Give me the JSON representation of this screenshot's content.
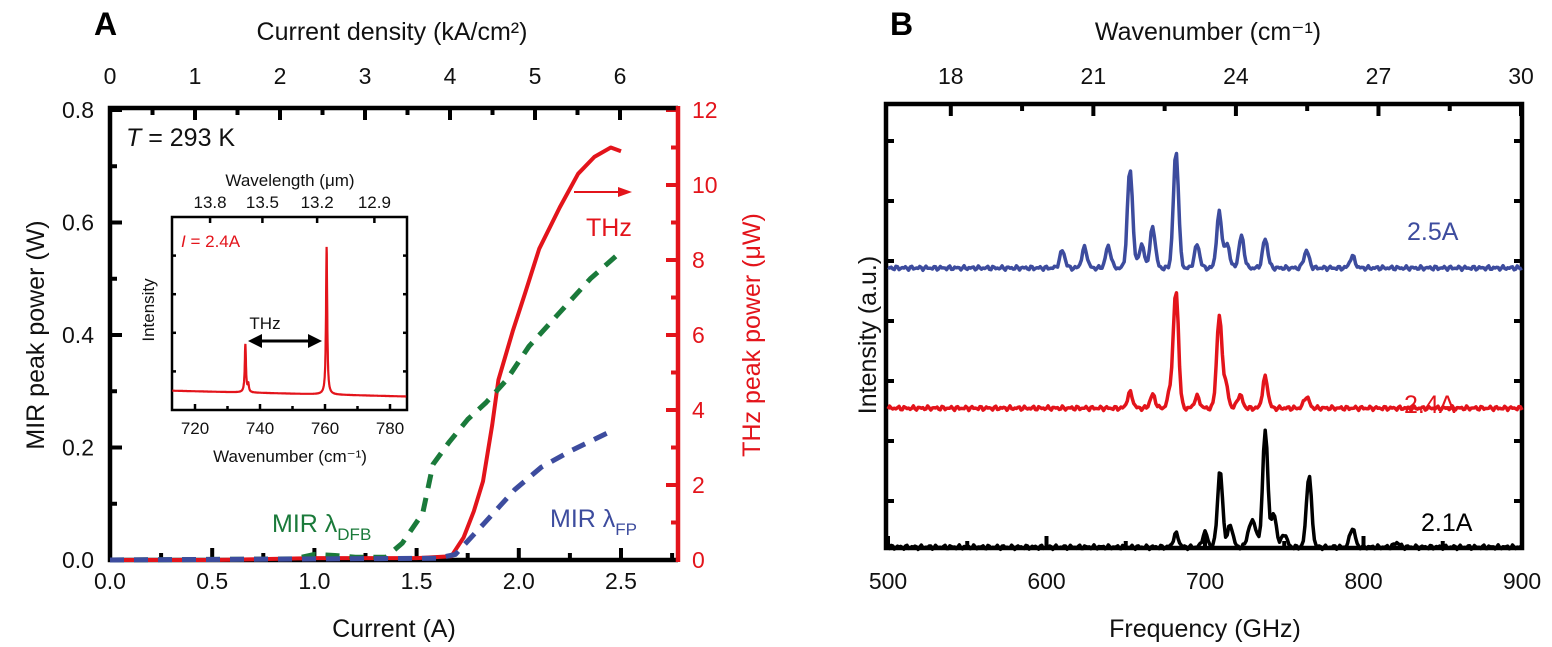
{
  "colors": {
    "thz": "#e3141b",
    "mir_dfb": "#1a7a3a",
    "mir_fp": "#3d4c9e",
    "axis": "#000000",
    "spec_25": "#3d4c9e",
    "spec_24": "#e3141b",
    "spec_21": "#000000"
  },
  "chart_data": [
    {
      "panel": "A",
      "type": "line",
      "xlabel": "Current (A)",
      "xlim": [
        0,
        2.78
      ],
      "xticks": [
        "0.0",
        "0.5",
        "1.0",
        "1.5",
        "2.0",
        "2.5"
      ],
      "x2label": "Current density (kA/cm²)",
      "x2ticks": [
        "0",
        "1",
        "2",
        "3",
        "4",
        "5",
        "6"
      ],
      "ylabel": "MIR peak power (W)",
      "ylim": [
        0,
        0.8
      ],
      "yticks": [
        "0.0",
        "0.2",
        "0.4",
        "0.6",
        "0.8"
      ],
      "y2label": "THz peak power (μW)",
      "y2lim": [
        0,
        12
      ],
      "y2ticks": [
        "0",
        "2",
        "4",
        "6",
        "8",
        "10",
        "12"
      ],
      "annotation_temp_italic": "T",
      "annotation_temp": " = 293 K",
      "thz_arrow_label": "THz",
      "series": [
        {
          "name": "THz",
          "axis": "right",
          "style": "solid",
          "x": [
            0,
            0.5,
            1.0,
            1.5,
            1.67,
            1.73,
            1.78,
            1.825,
            1.87,
            1.9,
            1.97,
            2.03,
            2.1,
            2.2,
            2.29,
            2.37,
            2.45,
            2.5
          ],
          "y": [
            0,
            0,
            0.05,
            0.05,
            0.1,
            0.6,
            1.3,
            2.1,
            3.6,
            4.8,
            6.1,
            7.1,
            8.3,
            9.4,
            10.3,
            10.75,
            11.0,
            10.9
          ]
        },
        {
          "name": "MIR λDFB",
          "label_main": "MIR λ",
          "label_sub": "DFB",
          "axis": "left",
          "style": "dashed",
          "x": [
            0,
            0.9,
            1.0,
            1.1,
            1.2,
            1.35,
            1.43,
            1.53,
            1.58,
            1.66,
            1.75,
            1.84,
            1.94,
            2.05,
            2.2,
            2.35,
            2.49
          ],
          "y": [
            0,
            0.002,
            0.01,
            0.008,
            0.005,
            0.005,
            0.03,
            0.083,
            0.17,
            0.21,
            0.25,
            0.28,
            0.32,
            0.38,
            0.44,
            0.5,
            0.545
          ]
        },
        {
          "name": "MIR λFP",
          "label_main": "MIR λ",
          "label_sub": "FP",
          "axis": "left",
          "style": "dashed",
          "x": [
            0,
            1.0,
            1.6,
            1.69,
            1.83,
            1.98,
            2.11,
            2.26,
            2.43
          ],
          "y": [
            0,
            0.002,
            0.003,
            0.01,
            0.065,
            0.125,
            0.165,
            0.195,
            0.225
          ]
        }
      ],
      "inset": {
        "type": "line",
        "xlabel": "Wavenumber (cm⁻¹)",
        "xlim": [
          713,
          785
        ],
        "xticks": [
          720,
          740,
          760,
          780
        ],
        "x2label": "Wavelength (μm)",
        "x2ticks": [
          "13.8",
          "13.5",
          "13.2",
          "12.9"
        ],
        "ylabel": "Intensity",
        "ylim": [
          0,
          1
        ],
        "current_italic": "I",
        "current_label": " = 2.4A",
        "arrow_label": "THz",
        "baseline": [
          0.1,
          0.07
        ],
        "peaks": [
          {
            "wavenumber": 735.5,
            "intensity": 0.34
          },
          {
            "wavenumber": 736.4,
            "intensity": 0.13
          },
          {
            "wavenumber": 760.5,
            "intensity": 0.845
          }
        ]
      }
    },
    {
      "panel": "B",
      "type": "line",
      "xlabel": "Frequency (GHz)",
      "xlim": [
        500,
        900
      ],
      "xticks": [
        "500",
        "600",
        "700",
        "800",
        "900"
      ],
      "x2label": "Wavenumber (cm⁻¹)",
      "x2ticks": [
        "18",
        "21",
        "24",
        "27",
        "30"
      ],
      "ylabel": "Intensity (a.u.)",
      "ylim": [
        0,
        7.6
      ],
      "series": [
        {
          "name": "2.5A",
          "baseline": 5.0,
          "peaks": [
            [
              610,
              5.3
            ],
            [
              624,
              5.35
            ],
            [
              639,
              5.37
            ],
            [
              652.7,
              6.7
            ],
            [
              660,
              5.4
            ],
            [
              667,
              5.7
            ],
            [
              681.7,
              7.0
            ],
            [
              695,
              5.4
            ],
            [
              709,
              5.95
            ],
            [
              714,
              5.4
            ],
            [
              723,
              5.55
            ],
            [
              738,
              5.5
            ],
            [
              764,
              5.3
            ],
            [
              793,
              5.2
            ]
          ]
        },
        {
          "name": "2.4A",
          "baseline": 2.6,
          "peaks": [
            [
              652.7,
              2.87
            ],
            [
              667,
              2.83
            ],
            [
              678,
              2.87
            ],
            [
              681.7,
              4.6
            ],
            [
              695,
              2.8
            ],
            [
              709,
              4.17
            ],
            [
              713,
              3.0
            ],
            [
              722,
              2.83
            ],
            [
              738,
              3.13
            ],
            [
              764,
              2.8
            ]
          ]
        },
        {
          "name": "2.1A",
          "baseline": 0.22,
          "peaks": [
            [
              681.7,
              0.45
            ],
            [
              700,
              0.47
            ],
            [
              709.5,
              1.53
            ],
            [
              716,
              0.6
            ],
            [
              728,
              0.5
            ],
            [
              731,
              0.6
            ],
            [
              738,
              2.22
            ],
            [
              743.5,
              0.78
            ],
            [
              750,
              0.45
            ],
            [
              765.6,
              1.45
            ],
            [
              793,
              0.55
            ],
            [
              821,
              0.3
            ]
          ]
        }
      ]
    }
  ]
}
